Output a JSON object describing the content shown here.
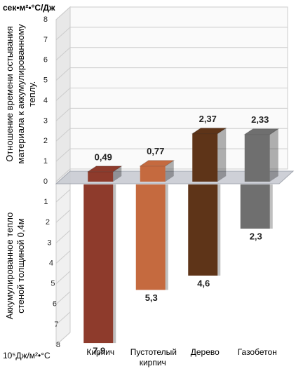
{
  "chart_data": {
    "type": "bar",
    "y_unit": "сек•м²•°C/Дж",
    "y2_unit": "10⁵Дж/м²•°C",
    "ylabel": "Отношение времени остывания материала к аккумулированному теплу.",
    "y2label": "Аккумулированное тепло стеной толщиной 0,4м",
    "categories": [
      "Кирпич",
      "Пустотелый кирпич",
      "Дерево",
      "Газобетон"
    ],
    "colors": [
      "#8e3b2c",
      "#c56a3f",
      "#5e3418",
      "#6f6f6f"
    ],
    "series": [
      {
        "values": [
          0.49,
          0.77,
          2.37,
          2.33
        ],
        "value_labels": [
          "0,49",
          "0,77",
          "2,37",
          "2,33"
        ]
      },
      {
        "axis": "y2",
        "values": [
          7.9,
          5.3,
          4.6,
          2.3
        ],
        "value_labels": [
          "7,9",
          "5,3",
          "4,6",
          "2,3"
        ]
      }
    ],
    "ylim": [
      0,
      8
    ],
    "yticks": [
      0,
      1,
      2,
      3,
      4,
      5,
      6,
      7,
      8
    ],
    "y2lim": [
      0,
      8
    ],
    "y2ticks": [
      1,
      2,
      3,
      4,
      5,
      6,
      7,
      8
    ],
    "grid": true
  }
}
